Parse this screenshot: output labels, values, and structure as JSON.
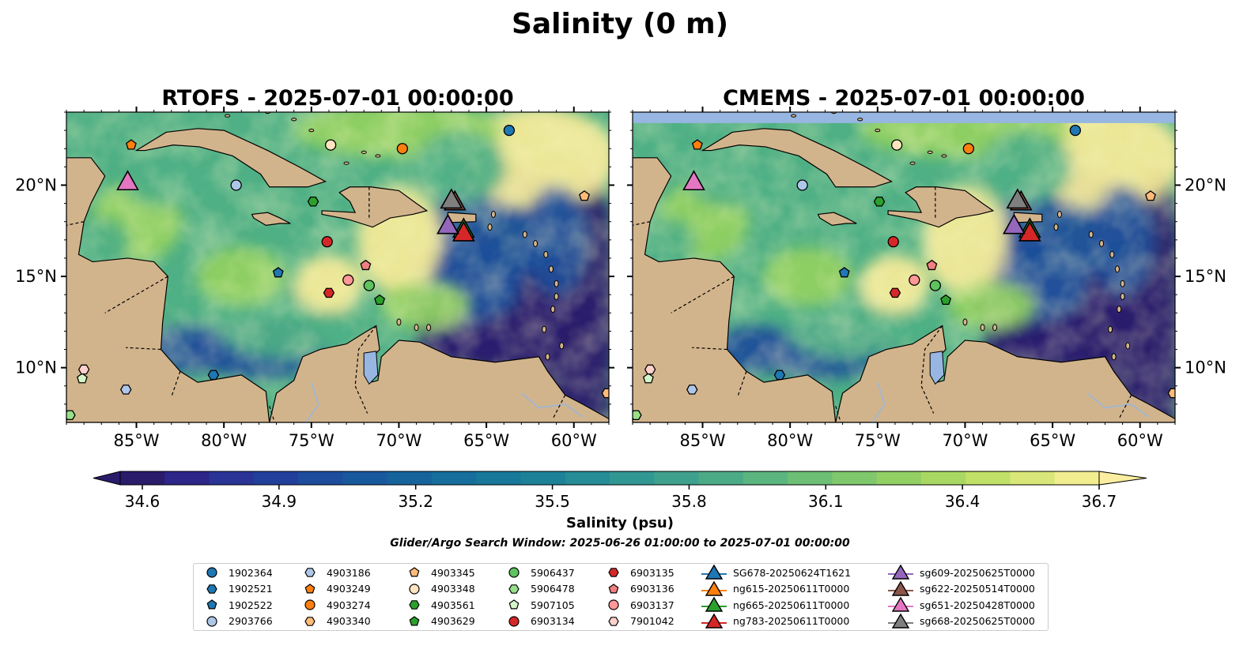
{
  "figure_title": "Salinity (0 m)",
  "colorbar": {
    "label": "Salinity (psu)",
    "ticks": [
      "34.6",
      "34.9",
      "35.2",
      "35.5",
      "35.8",
      "36.1",
      "36.4",
      "36.7"
    ],
    "colors": [
      "#2a1b6b",
      "#2d2588",
      "#2a3396",
      "#233f9c",
      "#1d4c9d",
      "#18589d",
      "#16639c",
      "#156e9b",
      "#17789a",
      "#1d8298",
      "#268c96",
      "#319793",
      "#3ea18e",
      "#4cab87",
      "#5bb57f",
      "#6cbf75",
      "#7fc86c",
      "#93d064",
      "#a9d862",
      "#c1e067",
      "#d9e778",
      "#f2ee90"
    ],
    "under_color": "#2a1b6b",
    "over_color": "#fbeea0"
  },
  "subtitle": "Glider/Argo Search Window: 2025-06-26 01:00:00 to 2025-07-01 00:00:00",
  "colors": {
    "land": "#d2b48c",
    "lake": "#97b6e1",
    "river": "#a3b7cc",
    "deep": "#2a1b6b",
    "mid": "#1f4f9a",
    "green": "#4fb085",
    "lightgreen": "#94d162",
    "yellow": "#f8ec98"
  },
  "chart_data": [
    {
      "type": "map",
      "title": "RTOFS - 2025-07-01 00:00:00",
      "x_ticks": [
        "85°W",
        "80°W",
        "75°W",
        "70°W",
        "65°W",
        "60°W"
      ],
      "y_ticks": [
        "10°N",
        "15°N",
        "20°N"
      ],
      "lon_range": [
        -89,
        -58
      ],
      "lat_range": [
        7,
        24
      ]
    },
    {
      "type": "map",
      "title": "CMEMS - 2025-07-01 00:00:00",
      "x_ticks": [
        "85°W",
        "80°W",
        "75°W",
        "70°W",
        "65°W",
        "60°W"
      ],
      "y_ticks": [
        "10°N",
        "15°N",
        "20°N"
      ],
      "lon_range": [
        -89,
        -58
      ],
      "lat_range": [
        7,
        24
      ]
    }
  ],
  "observations": [
    {
      "id": "1902364",
      "marker": "circle",
      "color": "#1f77b4",
      "lon": -63.7,
      "lat": 23.0
    },
    {
      "id": "1902521",
      "marker": "hexagon",
      "color": "#1f77b4",
      "lon": -80.6,
      "lat": 9.6
    },
    {
      "id": "1902522",
      "marker": "pentagon",
      "color": "#1f77b4",
      "lon": -76.9,
      "lat": 15.2
    },
    {
      "id": "2903766",
      "marker": "circle",
      "color": "#aec7e8",
      "lon": -79.3,
      "lat": 20.0
    },
    {
      "id": "4903186",
      "marker": "hexagon",
      "color": "#aec7e8",
      "lon": -85.6,
      "lat": 8.8
    },
    {
      "id": "4903249",
      "marker": "pentagon",
      "color": "#ff7f0e",
      "lon": -85.3,
      "lat": 22.2
    },
    {
      "id": "4903274",
      "marker": "circle",
      "color": "#ff7f0e",
      "lon": -69.8,
      "lat": 22.0
    },
    {
      "id": "4903340",
      "marker": "hexagon",
      "color": "#ffbb78",
      "lon": -58.1,
      "lat": 8.6
    },
    {
      "id": "4903345",
      "marker": "pentagon",
      "color": "#ffbb78",
      "lon": -59.4,
      "lat": 19.4
    },
    {
      "id": "4903348",
      "marker": "circle",
      "color": "#ffe4c0",
      "lon": -73.9,
      "lat": 22.2
    },
    {
      "id": "4903561",
      "marker": "hexagon",
      "color": "#2ca02c",
      "lon": -74.9,
      "lat": 19.1
    },
    {
      "id": "4903629",
      "marker": "pentagon",
      "color": "#2ca02c",
      "lon": -71.1,
      "lat": 13.7
    },
    {
      "id": "5906437",
      "marker": "circle",
      "color": "#5fc35f",
      "lon": -71.7,
      "lat": 14.5
    },
    {
      "id": "5906478",
      "marker": "hexagon",
      "color": "#98df8a",
      "lon": -88.8,
      "lat": 7.4
    },
    {
      "id": "5907105",
      "marker": "pentagon",
      "color": "#d4f5c8",
      "lon": -88.1,
      "lat": 9.4
    },
    {
      "id": "6903134",
      "marker": "circle",
      "color": "#d62728",
      "lon": -74.1,
      "lat": 16.9
    },
    {
      "id": "6903135",
      "marker": "hexagon",
      "color": "#d62728",
      "lon": -74.0,
      "lat": 14.1
    },
    {
      "id": "6903136",
      "marker": "pentagon",
      "color": "#f08080",
      "lon": -71.9,
      "lat": 15.6
    },
    {
      "id": "6903137",
      "marker": "circle",
      "color": "#ff9896",
      "lon": -72.9,
      "lat": 14.8
    },
    {
      "id": "7901042",
      "marker": "hexagon",
      "color": "#ffd0cc",
      "lon": -88.0,
      "lat": 9.9
    }
  ],
  "gliders": [
    {
      "id": "SG678-20250624T1621",
      "color": "#1f77b4",
      "lon": null,
      "lat": null
    },
    {
      "id": "ng615-20250611T0000",
      "color": "#ff7f0e",
      "lon": null,
      "lat": null
    },
    {
      "id": "ng665-20250611T0000",
      "color": "#2ca02c",
      "lon": -66.3,
      "lat": 17.6
    },
    {
      "id": "ng783-20250611T0000",
      "color": "#d62728",
      "lon": -66.3,
      "lat": 17.4
    },
    {
      "id": "sg609-20250625T0000",
      "color": "#9467bd",
      "lon": -67.2,
      "lat": 17.8
    },
    {
      "id": "sg622-20250514T0000",
      "color": "#8c564b",
      "lon": -66.8,
      "lat": 19.1
    },
    {
      "id": "sg651-20250428T0000",
      "color": "#e377c2",
      "lon": -85.5,
      "lat": 20.2
    },
    {
      "id": "sg668-20250625T0000",
      "color": "#7f7f7f",
      "lon": -67.0,
      "lat": 19.2
    }
  ]
}
